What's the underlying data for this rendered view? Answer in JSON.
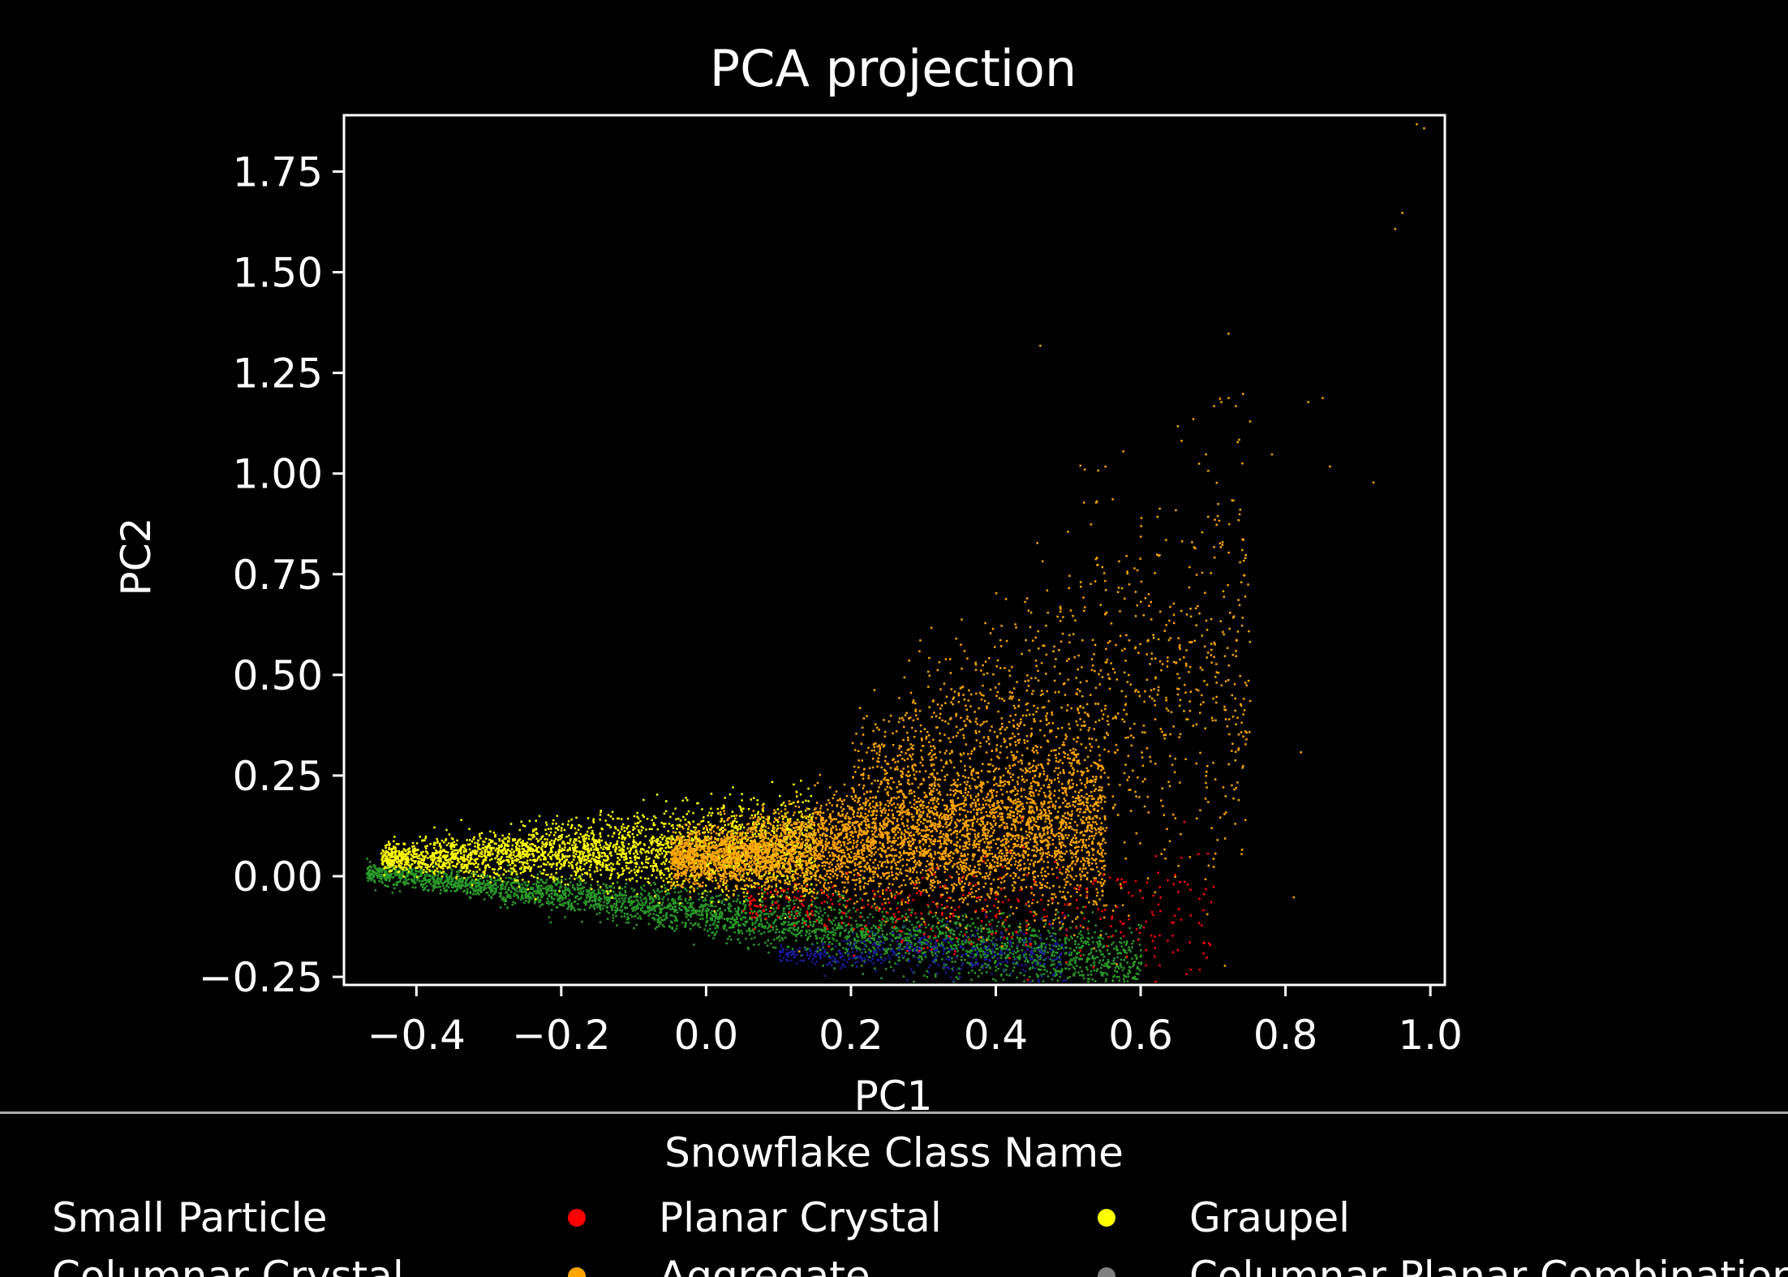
{
  "chart_data": {
    "type": "scatter",
    "title": "PCA projection",
    "xlabel": "PC1",
    "ylabel": "PC2",
    "xlim": [
      -0.5,
      1.02
    ],
    "ylim": [
      -0.27,
      1.89
    ],
    "xticks": [
      -0.4,
      -0.2,
      0.0,
      0.2,
      0.4,
      0.6,
      0.8,
      1.0
    ],
    "xtick_labels": [
      "−0.4",
      "−0.2",
      "0.0",
      "0.2",
      "0.4",
      "0.6",
      "0.8",
      "1.0"
    ],
    "yticks": [
      -0.25,
      0.0,
      0.25,
      0.5,
      0.75,
      1.0,
      1.25,
      1.5,
      1.75
    ],
    "ytick_labels": [
      "−0.25",
      "0.00",
      "0.25",
      "0.50",
      "0.75",
      "1.00",
      "1.25",
      "1.50",
      "1.75"
    ],
    "grid": false,
    "background": "#000000",
    "legend": {
      "title": "Snowflake Class Name",
      "placement": "bottom",
      "columns": 3,
      "entries": [
        {
          "name": "Small Particle",
          "color": "#1f1fbf"
        },
        {
          "name": "Planar Crystal",
          "color": "#ff0000"
        },
        {
          "name": "Graupel",
          "color": "#ffff00"
        },
        {
          "name": "Columnar Crystal",
          "color": "#228b22"
        },
        {
          "name": "Aggregate",
          "color": "#ffa500"
        },
        {
          "name": "Columnar Planar Combination",
          "color": "#808080"
        }
      ]
    },
    "series": [
      {
        "name": "Small Particle",
        "color": "#1a1a99",
        "clusters": [
          {
            "x": [
              0.1,
              0.5
            ],
            "y_center_at_x0": -0.19,
            "slope": 0,
            "spread": 0.03,
            "points": 500
          }
        ]
      },
      {
        "name": "Planar Crystal",
        "color": "#ff0000",
        "clusters": [
          {
            "x": [
              0.05,
              0.7
            ],
            "y_center_at_x0": -0.07,
            "slope": -0.05,
            "spread": 0.06,
            "points": 400
          }
        ]
      },
      {
        "name": "Graupel",
        "color": "#ffff00",
        "clusters": [
          {
            "x": [
              -0.45,
              0.15
            ],
            "y_center_at_x0": 0.07,
            "slope": 0.05,
            "spread": 0.04,
            "points": 2800
          }
        ]
      },
      {
        "name": "Columnar Crystal",
        "color": "#2a9a2a",
        "clusters": [
          {
            "x": [
              -0.47,
              0.6
            ],
            "y_center_at_x0": -0.09,
            "slope": -0.22,
            "spread": 0.03,
            "points": 3500
          }
        ]
      },
      {
        "name": "Aggregate",
        "color": "#ffa500",
        "clusters": [
          {
            "x": [
              -0.05,
              0.55
            ],
            "y_center_at_x0": 0.05,
            "slope": 0.15,
            "spread": 0.07,
            "points": 5000
          },
          {
            "x": [
              0.2,
              0.75
            ],
            "y_center_at_x0": 0.15,
            "slope": 0.5,
            "spread": 0.18,
            "points": 1400
          }
        ],
        "outliers": [
          [
            0.98,
            1.87
          ],
          [
            0.99,
            1.86
          ],
          [
            0.96,
            1.65
          ],
          [
            0.95,
            1.61
          ],
          [
            0.46,
            1.32
          ],
          [
            0.72,
            1.35
          ],
          [
            0.71,
            1.18
          ],
          [
            0.72,
            1.19
          ],
          [
            0.73,
            1.17
          ],
          [
            0.74,
            1.2
          ],
          [
            0.7,
            1.17
          ],
          [
            0.55,
            1.02
          ],
          [
            0.54,
            1.01
          ],
          [
            0.85,
            1.19
          ],
          [
            0.83,
            1.18
          ],
          [
            0.78,
            1.05
          ],
          [
            0.86,
            1.02
          ],
          [
            0.92,
            0.98
          ],
          [
            0.82,
            0.31
          ],
          [
            0.81,
            -0.05
          ],
          [
            0.65,
            1.12
          ]
        ]
      }
    ]
  }
}
